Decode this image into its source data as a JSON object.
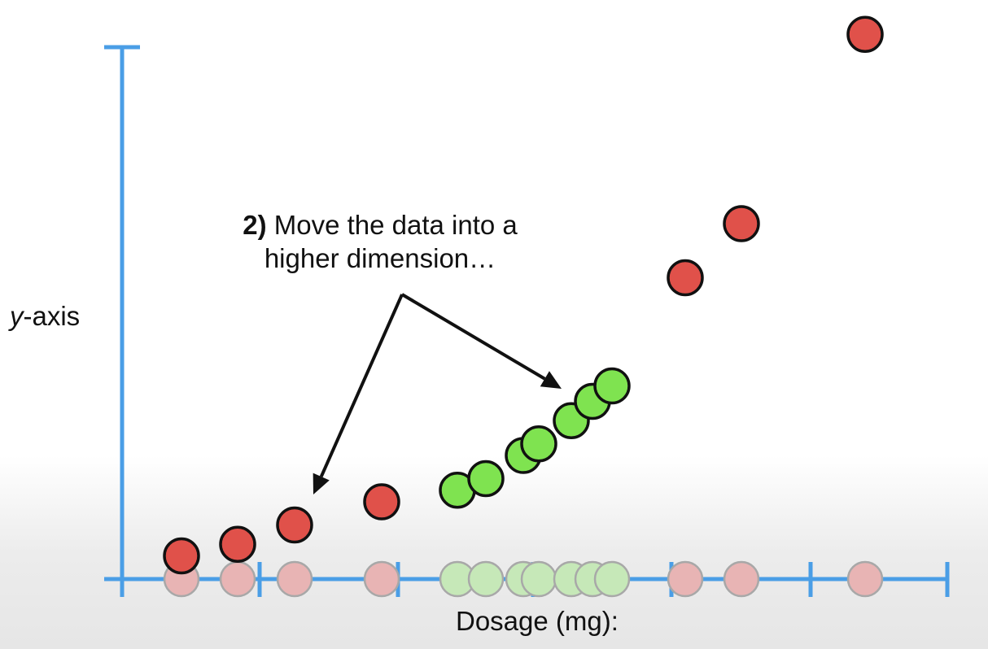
{
  "chart_data": {
    "type": "scatter",
    "title": "",
    "xlabel": "Dosage (mg):",
    "ylabel_italic": "y",
    "ylabel_rest": "-axis",
    "axis_color": "#4a9ee6",
    "grid": false,
    "x_ticks_count": 7,
    "series": [
      {
        "role": "red-outer-raised",
        "color": "#e0514a",
        "points": [
          {
            "x": 223,
            "y": 0.6
          },
          {
            "x": 292,
            "y": 0.9
          },
          {
            "x": 362,
            "y": 1.4
          },
          {
            "x": 469,
            "y": 2.0
          },
          {
            "x": 842,
            "y": 7.8
          },
          {
            "x": 911,
            "y": 9.2
          },
          {
            "x": 1063,
            "y": 14.1
          }
        ]
      },
      {
        "role": "green-middle-raised",
        "color": "#7fe350",
        "points": [
          {
            "x": 562,
            "y": 2.3
          },
          {
            "x": 597,
            "y": 2.6
          },
          {
            "x": 643,
            "y": 3.2
          },
          {
            "x": 662,
            "y": 3.5
          },
          {
            "x": 702,
            "y": 4.1
          },
          {
            "x": 728,
            "y": 4.6
          },
          {
            "x": 752,
            "y": 5.0
          }
        ]
      },
      {
        "role": "red-outer-original",
        "color": "#e8b4b4",
        "points": [
          {
            "x": 223,
            "y": 0
          },
          {
            "x": 292,
            "y": 0
          },
          {
            "x": 362,
            "y": 0
          },
          {
            "x": 469,
            "y": 0
          },
          {
            "x": 842,
            "y": 0
          },
          {
            "x": 911,
            "y": 0
          },
          {
            "x": 1063,
            "y": 0
          }
        ]
      },
      {
        "role": "green-middle-original",
        "color": "#c6e8b8",
        "points": [
          {
            "x": 562,
            "y": 0
          },
          {
            "x": 597,
            "y": 0
          },
          {
            "x": 643,
            "y": 0
          },
          {
            "x": 662,
            "y": 0
          },
          {
            "x": 702,
            "y": 0
          },
          {
            "x": 728,
            "y": 0
          },
          {
            "x": 752,
            "y": 0
          }
        ]
      }
    ],
    "annotation": {
      "bold": "2)",
      "line1_rest": " Move the data into a",
      "line2": "higher dimension…"
    }
  }
}
